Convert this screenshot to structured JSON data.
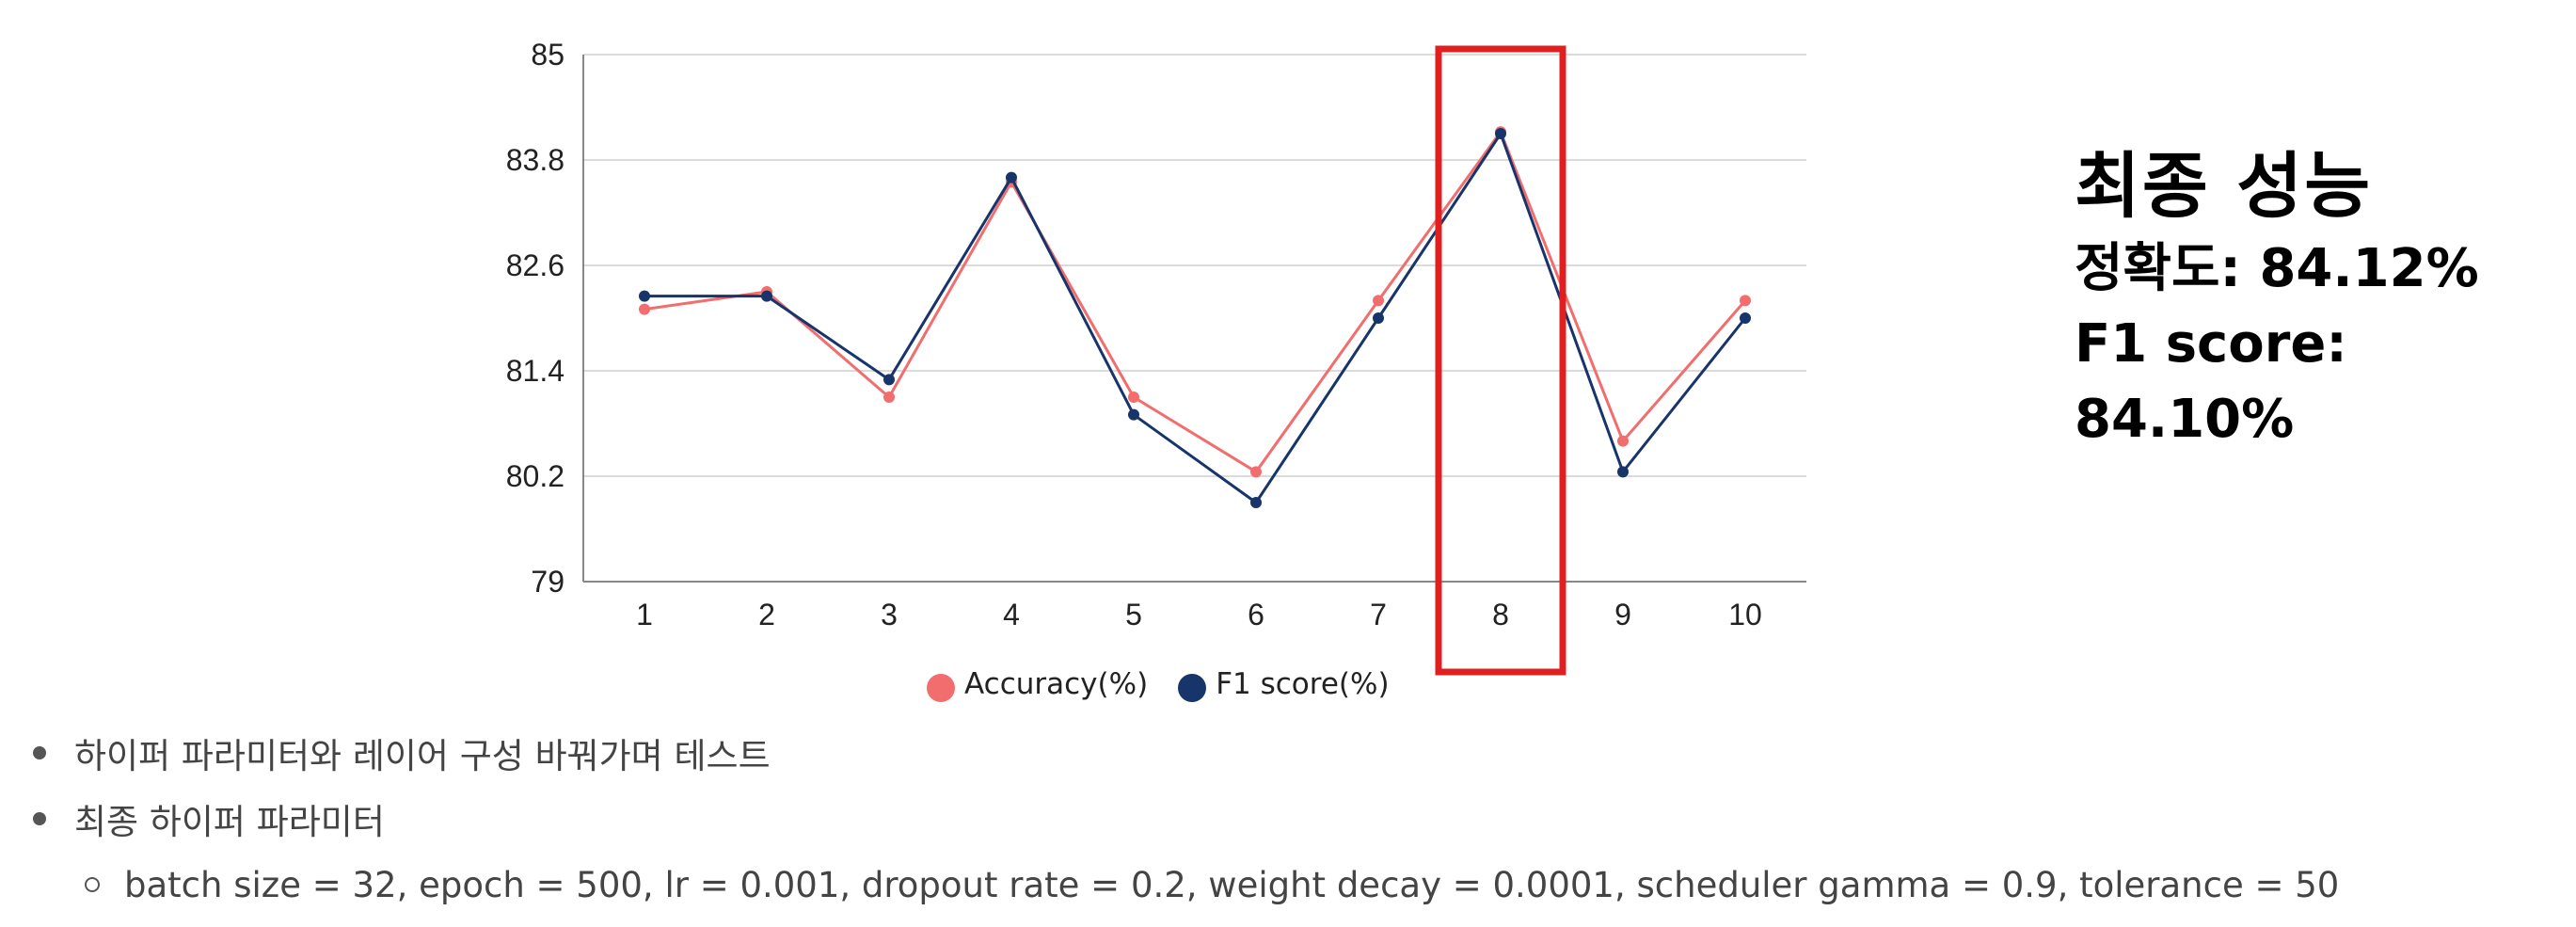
{
  "chart_data": {
    "type": "line",
    "categories": [
      "1",
      "2",
      "3",
      "4",
      "5",
      "6",
      "7",
      "8",
      "9",
      "10"
    ],
    "series": [
      {
        "name": "Accuracy(%)",
        "color": "#f26d6d",
        "values": [
          82.1,
          82.3,
          81.1,
          83.55,
          81.1,
          80.25,
          82.2,
          84.12,
          80.6,
          82.2
        ]
      },
      {
        "name": "F1 score(%)",
        "color": "#17346b",
        "values": [
          82.25,
          82.25,
          81.3,
          83.6,
          80.9,
          79.9,
          82.0,
          84.1,
          80.25,
          82.0
        ]
      }
    ],
    "ylim": [
      79,
      85
    ],
    "yticks": [
      {
        "value": 85,
        "label": "85"
      },
      {
        "value": 83.8,
        "label": "83.8"
      },
      {
        "value": 82.6,
        "label": "82.6"
      },
      {
        "value": 81.4,
        "label": "81.4"
      },
      {
        "value": 80.2,
        "label": "80.2"
      },
      {
        "value": 79,
        "label": "79"
      }
    ],
    "grid": true,
    "legend_position": "bottom",
    "highlight_category": "8",
    "highlight_color": "#e02020"
  },
  "summary": {
    "title": "최종 성능",
    "accuracy": "정확도: 84.12%",
    "f1": "F1 score: 84.10%"
  },
  "notes": {
    "bullet1": "하이퍼 파라미터와 레이어 구성 바꿔가며 테스트",
    "bullet2": "최종 하이퍼 파라미터",
    "sub1": "batch size = 32, epoch = 500, lr = 0.001, dropout rate = 0.2, weight decay = 0.0001, scheduler gamma = 0.9, tolerance = 50"
  }
}
